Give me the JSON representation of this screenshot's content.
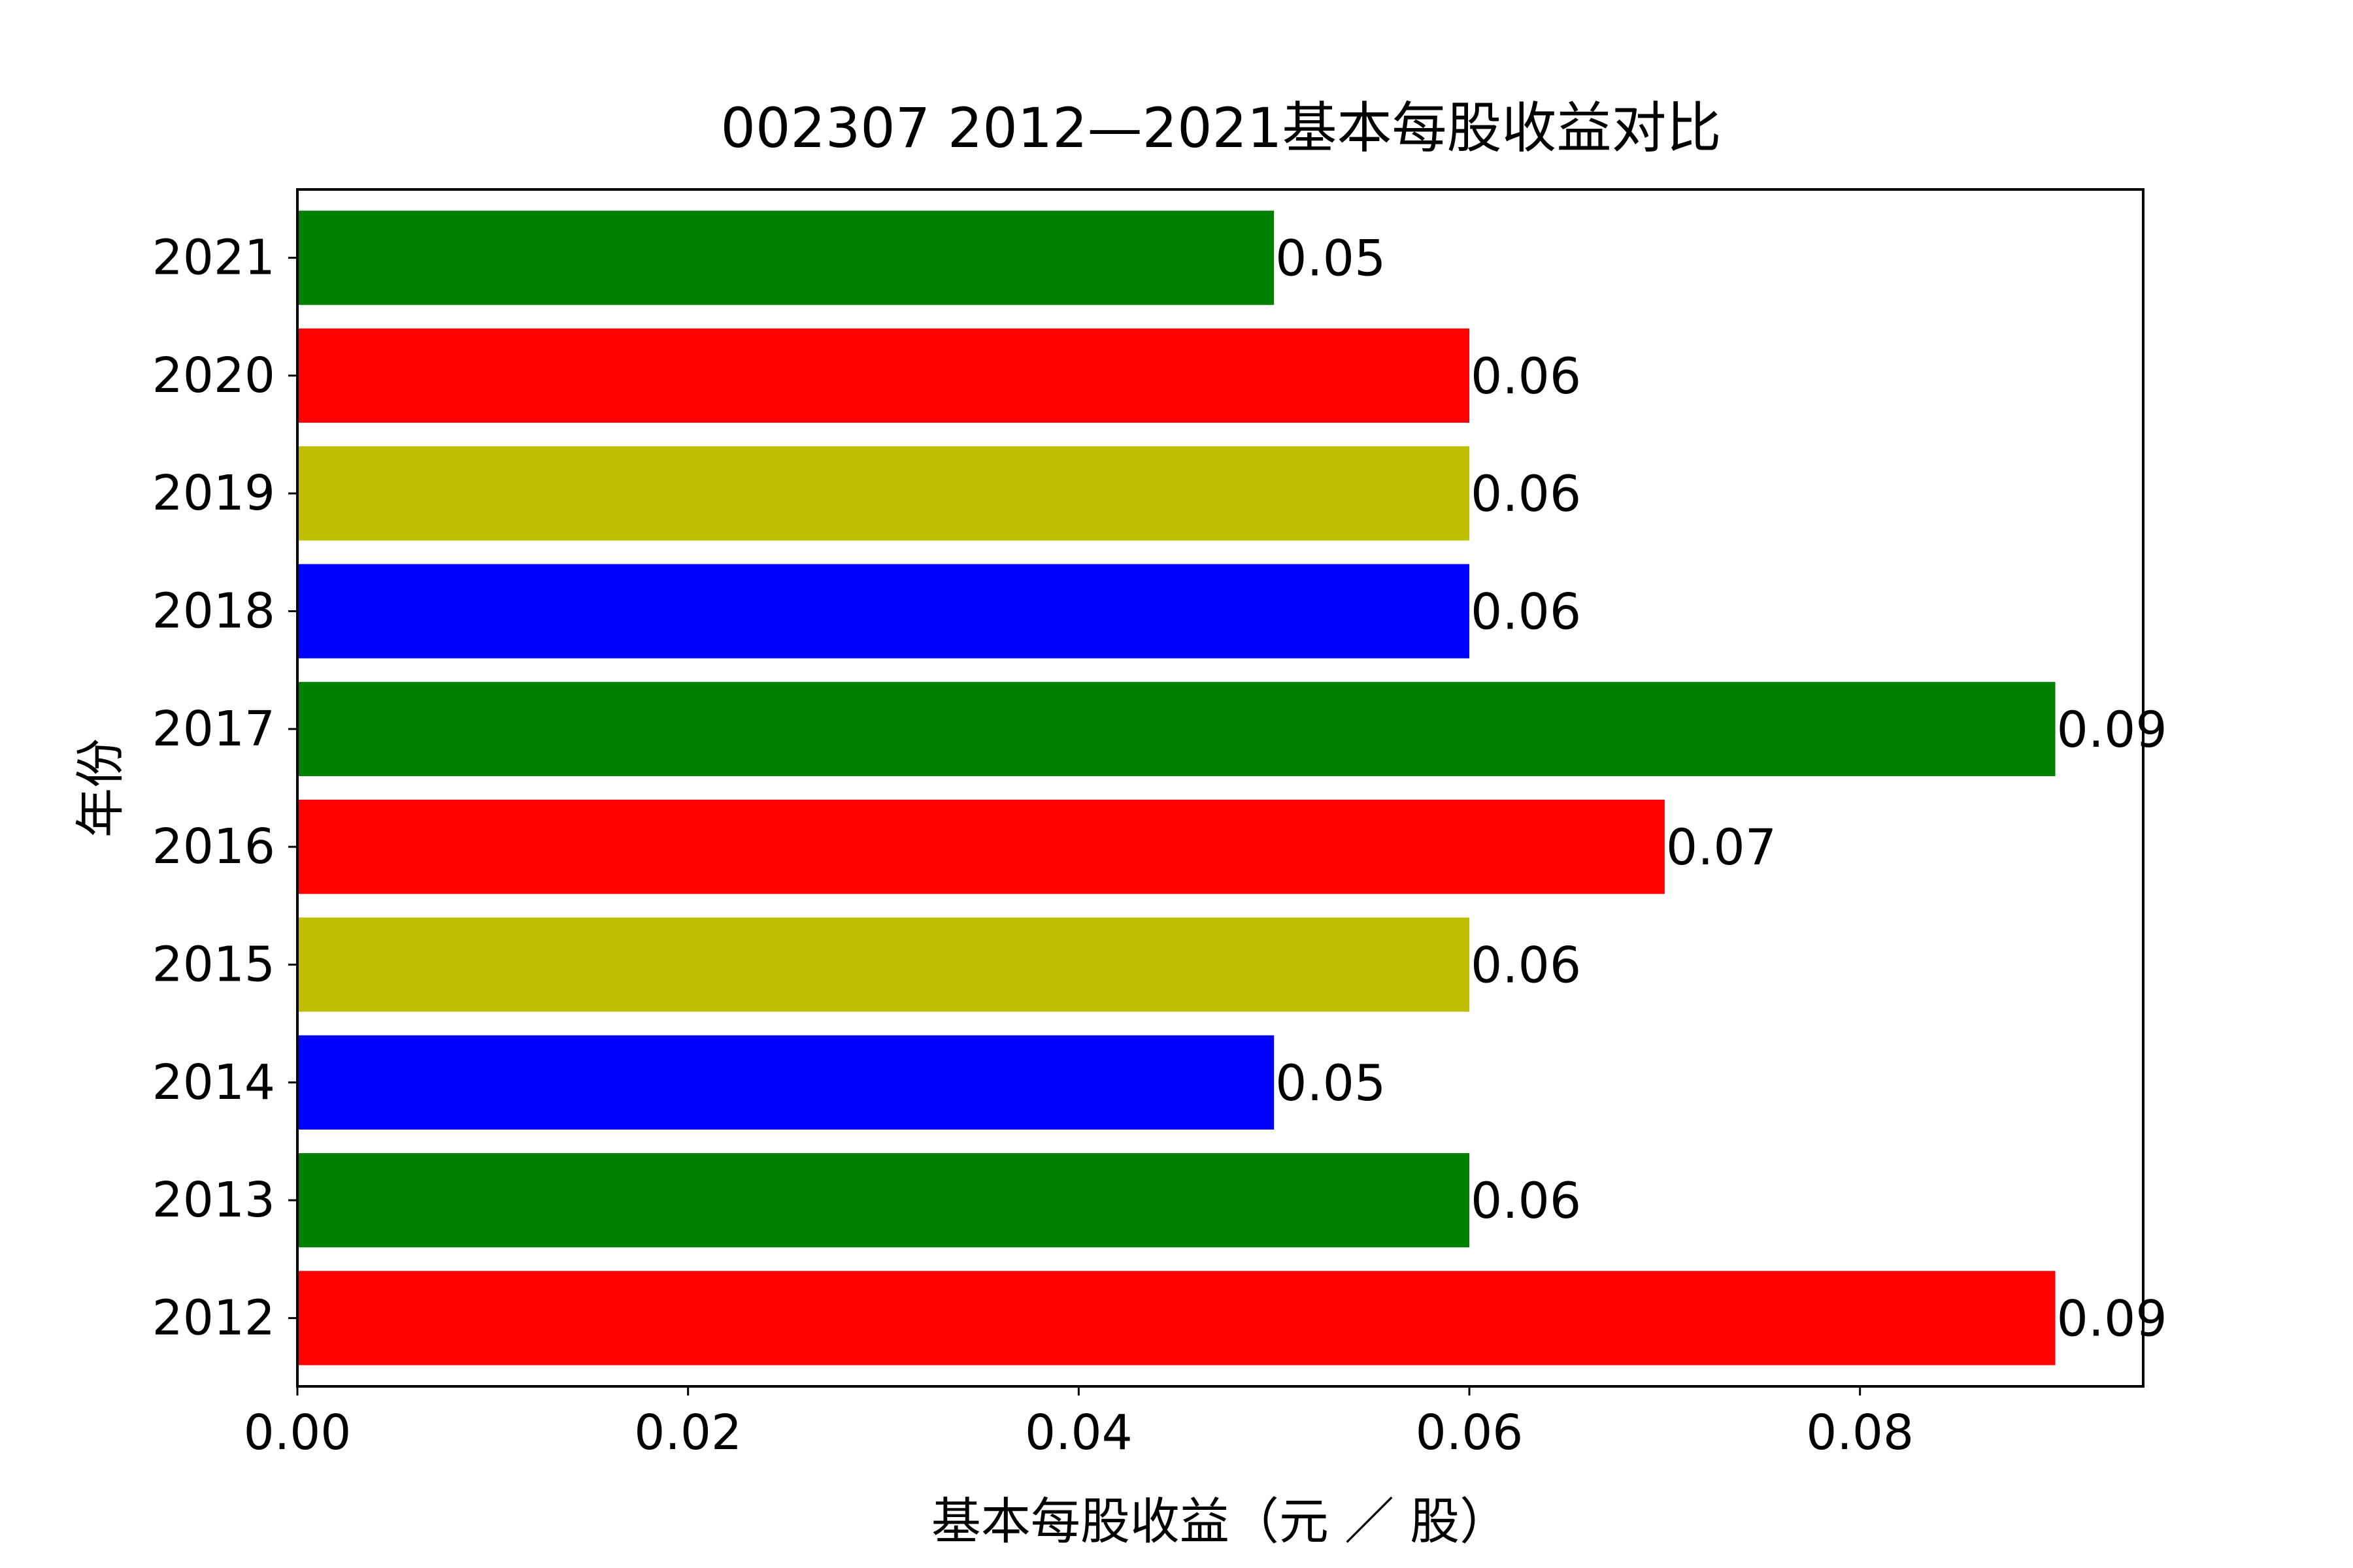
{
  "chart_data": {
    "type": "bar",
    "orientation": "horizontal",
    "title": "002307 2012—2021基本每股收益对比",
    "xlabel": "基本每股收益（元 ／ 股）",
    "ylabel": "年份",
    "categories": [
      "2012",
      "2013",
      "2014",
      "2015",
      "2016",
      "2017",
      "2018",
      "2019",
      "2020",
      "2021"
    ],
    "values": [
      0.09,
      0.06,
      0.05,
      0.06,
      0.07,
      0.09,
      0.06,
      0.06,
      0.06,
      0.05
    ],
    "value_labels": [
      "0.09",
      "0.06",
      "0.05",
      "0.06",
      "0.07",
      "0.09",
      "0.06",
      "0.06",
      "0.06",
      "0.05"
    ],
    "bar_colors": [
      "#ff0000",
      "#008000",
      "#0000ff",
      "#bfbf00",
      "#ff0000",
      "#008000",
      "#0000ff",
      "#bfbf00",
      "#ff0000",
      "#008000"
    ],
    "xlim": [
      0,
      0.0945
    ],
    "xticks": [
      0,
      0.02,
      0.04,
      0.06,
      0.08
    ],
    "xtick_labels": [
      "0.00",
      "0.02",
      "0.04",
      "0.06",
      "0.08"
    ],
    "grid": false,
    "legend": null
  }
}
